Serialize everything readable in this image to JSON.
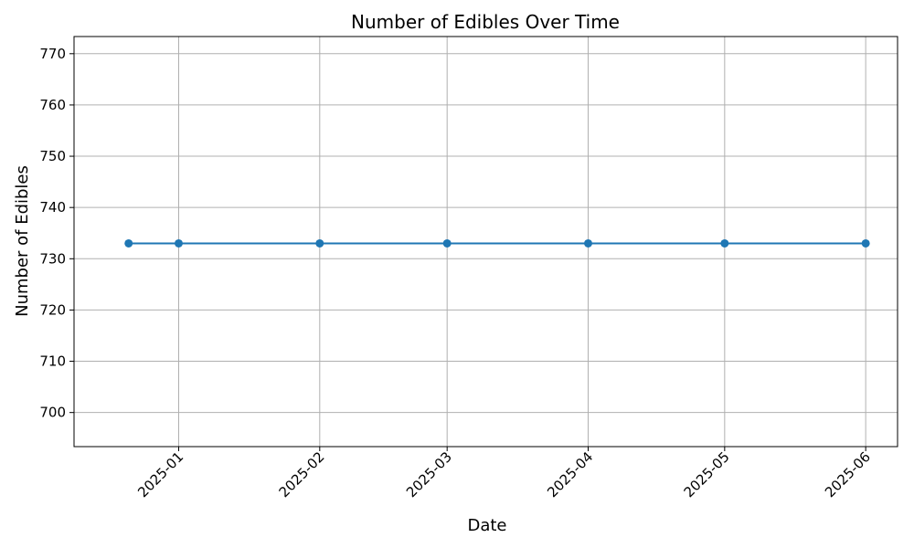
{
  "chart_data": {
    "type": "line",
    "title": "Number of Edibles Over Time",
    "xlabel": "Date",
    "ylabel": "Number of Edibles",
    "x": [
      "2024-12-21",
      "2025-01-01",
      "2025-02-01",
      "2025-03-01",
      "2025-04-01",
      "2025-05-01",
      "2025-06-01"
    ],
    "series": [
      {
        "values": [
          733,
          733,
          733,
          733,
          733,
          733,
          733
        ]
      }
    ],
    "xticks": [
      "2025-01-01",
      "2025-02-01",
      "2025-03-01",
      "2025-04-01",
      "2025-05-01",
      "2025-06-01"
    ],
    "xtick_labels": [
      "2025-01",
      "2025-02",
      "2025-03",
      "2025-04",
      "2025-05",
      "2025-06"
    ],
    "xlim": [
      "2024-12-09",
      "2025-06-08"
    ],
    "yticks": [
      700,
      710,
      720,
      730,
      740,
      750,
      760,
      770
    ],
    "ylim": [
      693.35,
      773.35
    ],
    "grid": true,
    "line_color": "#1f77b4"
  }
}
